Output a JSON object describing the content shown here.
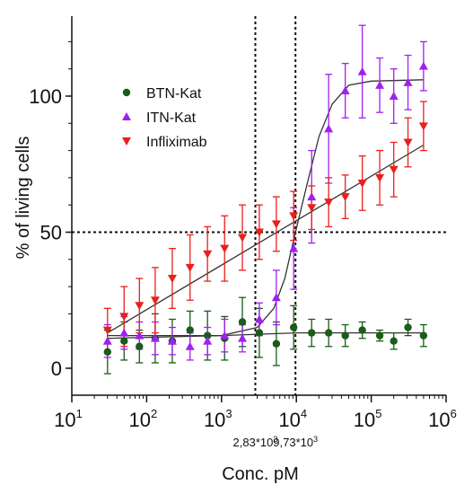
{
  "chart_data": {
    "type": "scatter",
    "x_scale": "log10",
    "xlim": [
      10,
      1000000
    ],
    "ylim": [
      -8,
      128
    ],
    "xlabel": "Conc. pM",
    "ylabel": "% of living cells",
    "x_ticks": [
      {
        "base": "10",
        "exp": "1",
        "value": 10
      },
      {
        "base": "10",
        "exp": "2",
        "value": 100
      },
      {
        "base": "10",
        "exp": "3",
        "value": 1000
      },
      {
        "base": "10",
        "exp": "4",
        "value": 10000
      },
      {
        "base": "10",
        "exp": "5",
        "value": 100000
      },
      {
        "base": "10",
        "exp": "6",
        "value": 1000000
      }
    ],
    "y_ticks": [
      {
        "label": "0",
        "value": 0
      },
      {
        "label": "50",
        "value": 50
      },
      {
        "label": "100",
        "value": 100
      }
    ],
    "grid": false,
    "legend_position": "top-left",
    "series": [
      {
        "name": "BTN-Kat",
        "color": "#1a5c1a",
        "marker": "circle",
        "fit": "flat",
        "points": [
          {
            "x": 30,
            "y": 6,
            "err": 8
          },
          {
            "x": 50,
            "y": 10,
            "err": 7
          },
          {
            "x": 80,
            "y": 8,
            "err": 6
          },
          {
            "x": 130,
            "y": 11,
            "err": 9
          },
          {
            "x": 220,
            "y": 10,
            "err": 8
          },
          {
            "x": 380,
            "y": 14,
            "err": 7
          },
          {
            "x": 650,
            "y": 12,
            "err": 9
          },
          {
            "x": 1100,
            "y": 11,
            "err": 8
          },
          {
            "x": 1900,
            "y": 17,
            "err": 9
          },
          {
            "x": 3200,
            "y": 13,
            "err": 9
          },
          {
            "x": 5400,
            "y": 9,
            "err": 8
          },
          {
            "x": 9200,
            "y": 15,
            "err": 8
          },
          {
            "x": 16000,
            "y": 13,
            "err": 5
          },
          {
            "x": 27000,
            "y": 13,
            "err": 5
          },
          {
            "x": 45000,
            "y": 12,
            "err": 4
          },
          {
            "x": 76000,
            "y": 14,
            "err": 3
          },
          {
            "x": 130000,
            "y": 12,
            "err": 2
          },
          {
            "x": 200000,
            "y": 10,
            "err": 3
          },
          {
            "x": 310000,
            "y": 15,
            "err": 3
          },
          {
            "x": 500000,
            "y": 12,
            "err": 4
          }
        ],
        "fit_points": [
          [
            30,
            11
          ],
          [
            1000,
            12
          ],
          [
            10000,
            13
          ],
          [
            500000,
            13
          ]
        ]
      },
      {
        "name": "ITN-Kat",
        "color": "#a020f0",
        "marker": "triangle-up",
        "fit": "sigmoid",
        "points": [
          {
            "x": 30,
            "y": 10,
            "err": 6
          },
          {
            "x": 50,
            "y": 13,
            "err": 6
          },
          {
            "x": 80,
            "y": 12,
            "err": 5
          },
          {
            "x": 130,
            "y": 11,
            "err": 6
          },
          {
            "x": 220,
            "y": 10,
            "err": 5
          },
          {
            "x": 380,
            "y": 8,
            "err": 5
          },
          {
            "x": 650,
            "y": 10,
            "err": 5
          },
          {
            "x": 1100,
            "y": 12,
            "err": 6
          },
          {
            "x": 1900,
            "y": 11,
            "err": 5
          },
          {
            "x": 3200,
            "y": 18,
            "err": 6
          },
          {
            "x": 5400,
            "y": 26,
            "err": 10
          },
          {
            "x": 9200,
            "y": 44,
            "err": 15
          },
          {
            "x": 16000,
            "y": 63,
            "err": 17
          },
          {
            "x": 27000,
            "y": 88,
            "err": 20
          },
          {
            "x": 45000,
            "y": 102,
            "err": 10
          },
          {
            "x": 76000,
            "y": 109,
            "err": 17
          },
          {
            "x": 130000,
            "y": 104,
            "err": 10
          },
          {
            "x": 200000,
            "y": 100,
            "err": 10
          },
          {
            "x": 310000,
            "y": 105,
            "err": 10
          },
          {
            "x": 500000,
            "y": 111,
            "err": 9
          }
        ],
        "fit_points": [
          [
            30,
            12
          ],
          [
            1000,
            12
          ],
          [
            3000,
            15
          ],
          [
            5000,
            22
          ],
          [
            7000,
            33
          ],
          [
            9730,
            50
          ],
          [
            14000,
            68
          ],
          [
            20000,
            85
          ],
          [
            30000,
            97
          ],
          [
            50000,
            104
          ],
          [
            100000,
            105.5
          ],
          [
            500000,
            106
          ]
        ]
      },
      {
        "name": "Infliximab",
        "color": "#e8201c",
        "marker": "triangle-down",
        "fit": "line",
        "points": [
          {
            "x": 30,
            "y": 14,
            "err": 8
          },
          {
            "x": 50,
            "y": 19,
            "err": 11
          },
          {
            "x": 80,
            "y": 23,
            "err": 10
          },
          {
            "x": 130,
            "y": 25,
            "err": 12
          },
          {
            "x": 220,
            "y": 33,
            "err": 11
          },
          {
            "x": 380,
            "y": 37,
            "err": 12
          },
          {
            "x": 650,
            "y": 42,
            "err": 10
          },
          {
            "x": 1100,
            "y": 44,
            "err": 12
          },
          {
            "x": 1900,
            "y": 48,
            "err": 12
          },
          {
            "x": 3200,
            "y": 50,
            "err": 10
          },
          {
            "x": 5400,
            "y": 53,
            "err": 10
          },
          {
            "x": 9200,
            "y": 56,
            "err": 9
          },
          {
            "x": 16000,
            "y": 59,
            "err": 8
          },
          {
            "x": 27000,
            "y": 61,
            "err": 9
          },
          {
            "x": 45000,
            "y": 63,
            "err": 8
          },
          {
            "x": 76000,
            "y": 68,
            "err": 10
          },
          {
            "x": 130000,
            "y": 70,
            "err": 10
          },
          {
            "x": 200000,
            "y": 73,
            "err": 10
          },
          {
            "x": 310000,
            "y": 83,
            "err": 9
          },
          {
            "x": 500000,
            "y": 89,
            "err": 9
          }
        ],
        "fit_points": [
          [
            30,
            13
          ],
          [
            500000,
            82
          ]
        ]
      }
    ],
    "reference_lines": [
      {
        "orientation": "vertical",
        "x": 2830,
        "label": "2,83*10",
        "label_exp": "3"
      },
      {
        "orientation": "vertical",
        "x": 9730,
        "label": "9,73*10",
        "label_exp": "3"
      },
      {
        "orientation": "horizontal",
        "y": 50
      }
    ]
  }
}
